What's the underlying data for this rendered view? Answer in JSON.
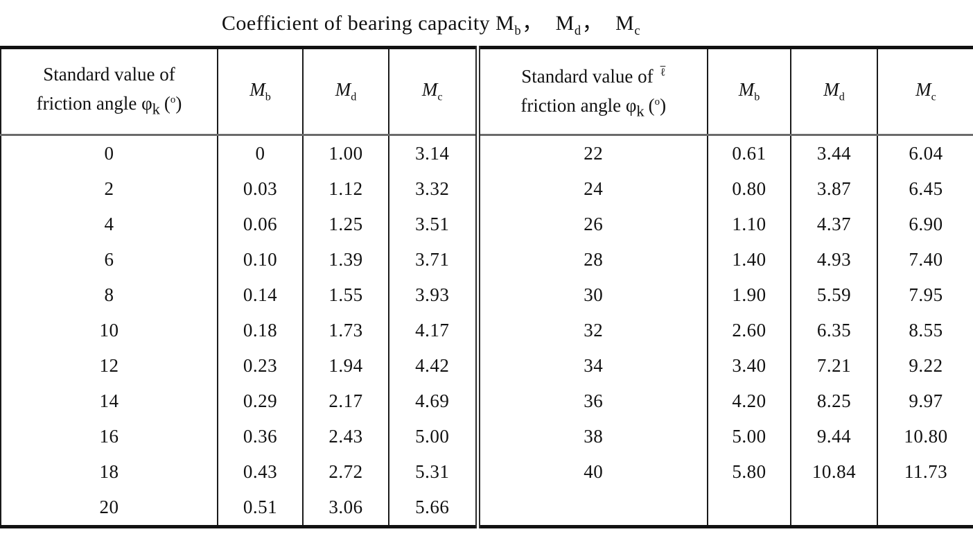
{
  "title": {
    "prefix": "Coefficient of bearing capacity",
    "m_base": "M",
    "m_subs": [
      "b",
      "d",
      "c"
    ],
    "comma": "，"
  },
  "header": {
    "angle_line1": "Standard value of",
    "angle_line2": "friction angle φ",
    "angle_sub": "k",
    "paren_open": "(",
    "degree_sup": "o",
    "paren_close": ")",
    "artifact": "ℓ",
    "m_base": "M",
    "m_subs": [
      "b",
      "d",
      "c"
    ]
  },
  "table": {
    "column_names": [
      "Standard value of friction angle φk (o)",
      "Mb",
      "Md",
      "Mc",
      "Standard value of friction angle φk (o)",
      "Mb",
      "Md",
      "Mc"
    ],
    "left_rows": [
      [
        "0",
        "0",
        "1.00",
        "3.14"
      ],
      [
        "2",
        "0.03",
        "1.12",
        "3.32"
      ],
      [
        "4",
        "0.06",
        "1.25",
        "3.51"
      ],
      [
        "6",
        "0.10",
        "1.39",
        "3.71"
      ],
      [
        "8",
        "0.14",
        "1.55",
        "3.93"
      ],
      [
        "10",
        "0.18",
        "1.73",
        "4.17"
      ],
      [
        "12",
        "0.23",
        "1.94",
        "4.42"
      ],
      [
        "14",
        "0.29",
        "2.17",
        "4.69"
      ],
      [
        "16",
        "0.36",
        "2.43",
        "5.00"
      ],
      [
        "18",
        "0.43",
        "2.72",
        "5.31"
      ],
      [
        "20",
        "0.51",
        "3.06",
        "5.66"
      ]
    ],
    "right_rows": [
      [
        "22",
        "0.61",
        "3.44",
        "6.04"
      ],
      [
        "24",
        "0.80",
        "3.87",
        "6.45"
      ],
      [
        "26",
        "1.10",
        "4.37",
        "6.90"
      ],
      [
        "28",
        "1.40",
        "4.93",
        "7.40"
      ],
      [
        "30",
        "1.90",
        "5.59",
        "7.95"
      ],
      [
        "32",
        "2.60",
        "6.35",
        "8.55"
      ],
      [
        "34",
        "3.40",
        "7.21",
        "9.22"
      ],
      [
        "36",
        "4.20",
        "8.25",
        "9.97"
      ],
      [
        "38",
        "5.00",
        "9.44",
        "10.80"
      ],
      [
        "40",
        "5.80",
        "10.84",
        "11.73"
      ],
      [
        "",
        "",
        "",
        ""
      ]
    ]
  },
  "colors": {
    "text": "#111111",
    "line": "#1a1a1a",
    "header_rule": "#6a6a6a",
    "background": "#ffffff"
  }
}
